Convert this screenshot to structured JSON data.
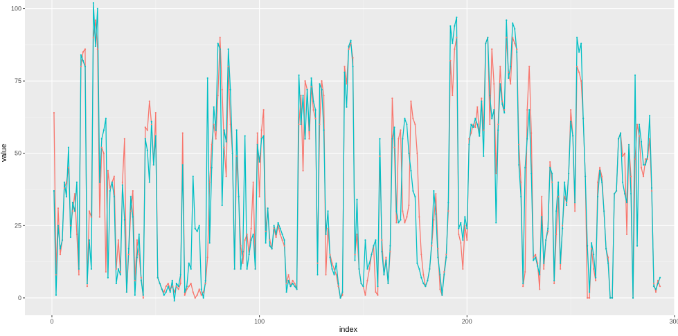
{
  "chart_data": {
    "type": "line",
    "title": "",
    "xlabel": "index",
    "ylabel": "value",
    "xlim": [
      -13,
      300
    ],
    "ylim": [
      -6,
      103
    ],
    "x_ticks": [
      0,
      100,
      200,
      300
    ],
    "y_ticks": [
      0,
      25,
      50,
      75,
      100
    ],
    "grid": true,
    "legend": "none",
    "background": "#ebebeb",
    "series": [
      {
        "color": "#f8766d",
        "values": [
          64,
          8,
          31,
          15,
          20,
          38,
          40,
          45,
          25,
          30,
          36,
          22,
          8,
          80,
          85,
          86,
          4,
          30,
          28,
          90,
          96,
          86,
          28,
          52,
          50,
          9,
          44,
          38,
          40,
          42,
          10,
          20,
          9,
          40,
          55,
          2,
          15,
          30,
          37,
          6,
          20,
          15,
          7,
          0,
          59,
          58,
          68,
          60,
          46,
          64,
          7,
          5,
          3,
          2,
          4,
          5,
          3,
          4,
          2,
          4,
          3,
          5,
          57,
          1,
          3,
          4,
          5,
          2,
          0,
          1,
          3,
          1,
          2,
          5,
          14,
          40,
          53,
          60,
          55,
          70,
          90,
          72,
          52,
          42,
          80,
          60,
          50,
          10,
          49,
          35,
          18,
          12,
          20,
          22,
          15,
          24,
          40,
          10,
          57,
          35,
          58,
          65,
          23,
          31,
          20,
          17,
          24,
          21,
          25,
          22,
          20,
          18,
          5,
          8,
          4,
          6,
          5,
          3,
          60,
          70,
          44,
          75,
          72,
          55,
          73,
          65,
          62,
          12,
          60,
          75,
          70,
          8,
          24,
          15,
          12,
          10,
          8,
          4,
          0,
          1,
          80,
          74,
          86,
          88,
          83,
          15,
          22,
          10,
          5,
          4,
          1,
          6,
          10,
          15,
          18,
          2,
          1,
          49,
          20,
          8,
          14,
          5,
          16,
          69,
          52,
          26,
          55,
          58,
          30,
          26,
          28,
          32,
          68,
          62,
          60,
          50,
          28,
          15,
          8,
          4,
          6,
          10,
          18,
          27,
          36,
          17,
          3,
          1,
          9,
          15,
          30,
          82,
          70,
          86,
          90,
          22,
          19,
          10,
          25,
          20,
          55,
          57,
          60,
          59,
          66,
          56,
          69,
          58,
          88,
          90,
          60,
          86,
          74,
          43,
          60,
          80,
          68,
          65,
          90,
          78,
          74,
          90,
          88,
          86,
          53,
          40,
          4,
          9,
          65,
          80,
          57,
          14,
          15,
          12,
          3,
          35,
          10,
          20,
          23,
          47,
          40,
          5,
          22,
          35,
          10,
          25,
          35,
          33,
          43,
          65,
          56,
          30,
          80,
          78,
          75,
          62,
          42,
          0,
          0,
          17,
          10,
          6,
          40,
          45,
          42,
          30,
          17,
          14,
          0,
          0,
          36,
          37,
          55,
          57,
          49,
          50,
          22,
          53,
          42,
          0,
          48,
          60,
          56,
          45,
          42,
          48,
          48,
          55,
          37,
          5,
          2,
          6,
          4
        ]
      },
      {
        "color": "#00bfc4",
        "values": [
          37,
          1,
          25,
          17,
          20,
          40,
          35,
          52,
          21,
          33,
          30,
          40,
          10,
          84,
          82,
          80,
          5,
          20,
          10,
          102,
          87,
          100,
          40,
          55,
          58,
          62,
          7,
          37,
          40,
          35,
          5,
          10,
          8,
          39,
          27,
          2,
          17,
          35,
          28,
          1,
          14,
          22,
          6,
          1,
          55,
          51,
          40,
          61,
          46,
          56,
          7,
          5,
          3,
          1,
          2,
          4,
          2,
          6,
          -1,
          5,
          4,
          8,
          46,
          2,
          4,
          12,
          10,
          42,
          24,
          23,
          25,
          3,
          0,
          6,
          76,
          19,
          45,
          66,
          58,
          88,
          86,
          32,
          58,
          54,
          86,
          72,
          50,
          10,
          58,
          35,
          10,
          16,
          56,
          10,
          15,
          20,
          22,
          10,
          53,
          47,
          55,
          56,
          19,
          31,
          18,
          17,
          25,
          22,
          26,
          24,
          22,
          20,
          2,
          6,
          4,
          5,
          4,
          3,
          77,
          60,
          70,
          55,
          72,
          58,
          76,
          68,
          65,
          8,
          74,
          72,
          58,
          22,
          30,
          14,
          10,
          8,
          12,
          5,
          0,
          2,
          78,
          66,
          87,
          89,
          80,
          13,
          34,
          10,
          5,
          4,
          20,
          10,
          12,
          15,
          18,
          20,
          4,
          55,
          16,
          8,
          13,
          5,
          18,
          55,
          59,
          30,
          26,
          27,
          55,
          62,
          60,
          50,
          44,
          37,
          35,
          12,
          10,
          7,
          5,
          4,
          6,
          10,
          19,
          37,
          29,
          14,
          8,
          1,
          8,
          14,
          33,
          94,
          88,
          94,
          97,
          24,
          26,
          20,
          28,
          24,
          53,
          60,
          59,
          62,
          60,
          56,
          68,
          49,
          88,
          90,
          70,
          62,
          65,
          26,
          58,
          74,
          67,
          64,
          96,
          76,
          80,
          95,
          93,
          85,
          46,
          35,
          5,
          45,
          55,
          65,
          43,
          13,
          14,
          11,
          8,
          28,
          12,
          20,
          24,
          45,
          43,
          6,
          30,
          40,
          12,
          24,
          40,
          32,
          43,
          61,
          56,
          33,
          90,
          85,
          88,
          62,
          42,
          18,
          2,
          19,
          15,
          7,
          35,
          44,
          40,
          30,
          17,
          12,
          0,
          0,
          36,
          37,
          55,
          57,
          40,
          36,
          33,
          53,
          36,
          0,
          77,
          18,
          60,
          54,
          46,
          46,
          49,
          63,
          38,
          4,
          3,
          5,
          7
        ]
      }
    ]
  }
}
